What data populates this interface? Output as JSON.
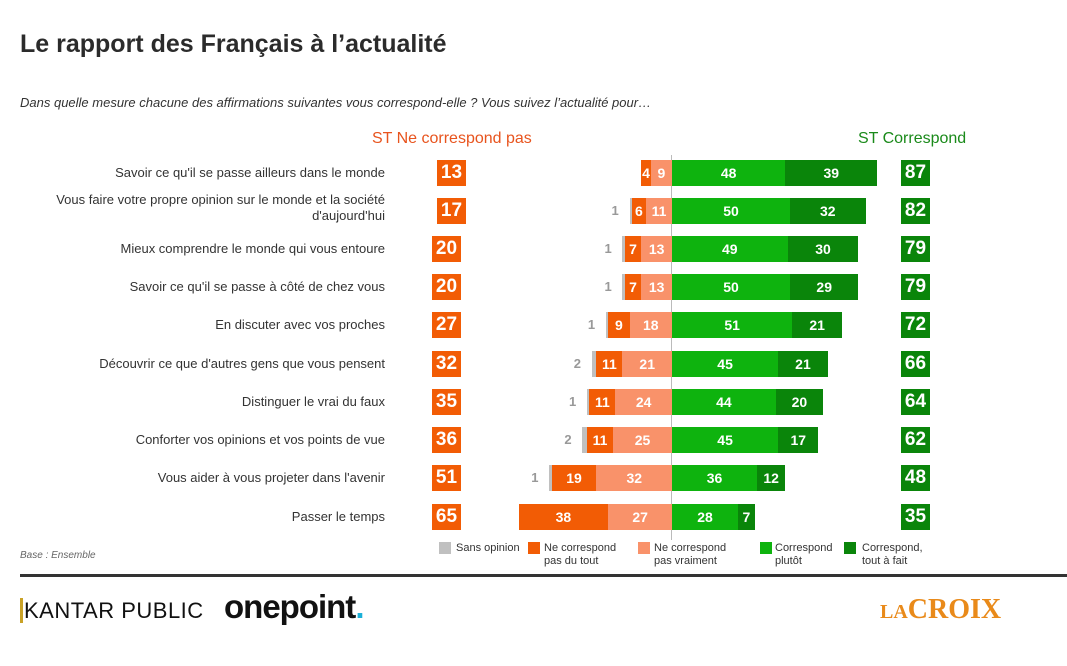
{
  "title": "Le rapport des Français à l’actualité",
  "subtitle": "Dans quelle mesure chacune des affirmations suivantes vous correspond-elle ? Vous suivez l’actualité pour…",
  "headers": {
    "left": "ST Ne correspond pas",
    "right": "ST Correspond"
  },
  "base": "Base : Ensemble",
  "logos": {
    "kantar": "KANTAR PUBLIC",
    "onepoint": "onepoint",
    "lacroix_la": "LA",
    "lacroix_croix": "CROIX"
  },
  "colors": {
    "sans_opinion": "#c0c0c0",
    "ne_correspond_pas_du_tout": "#f25c05",
    "ne_correspond_pas_vraiment": "#f9926a",
    "correspond_plutot": "#0eb30e",
    "correspond_tout_a_fait": "#0a850a"
  },
  "chart_data": {
    "type": "bar",
    "subtype": "diverging-stacked-horizontal",
    "title": "Le rapport des Français à l’actualité",
    "categories": [
      "Savoir ce qu'il se passe ailleurs dans le monde",
      "Vous faire votre propre opinion sur le monde et la société d'aujourd'hui",
      "Mieux comprendre le monde qui vous entoure",
      "Savoir ce qu'il se passe à côté de chez vous",
      "En discuter avec vos proches",
      "Découvrir ce que d'autres gens que vous pensent",
      "Distinguer le vrai du faux",
      "Conforter vos opinions et vos points de vue",
      "Vous aider à vous projeter dans l'avenir",
      "Passer le temps"
    ],
    "series": [
      {
        "name": "Sans opinion",
        "values": [
          0,
          1,
          1,
          1,
          1,
          2,
          1,
          2,
          1,
          0
        ]
      },
      {
        "name": "Ne correspond pas du tout",
        "values": [
          4,
          6,
          7,
          7,
          9,
          11,
          11,
          11,
          19,
          38
        ]
      },
      {
        "name": "Ne correspond pas vraiment",
        "values": [
          9,
          11,
          13,
          13,
          18,
          21,
          24,
          25,
          32,
          27
        ]
      },
      {
        "name": "Correspond plutôt",
        "values": [
          48,
          50,
          49,
          50,
          51,
          45,
          44,
          45,
          36,
          28
        ]
      },
      {
        "name": "Correspond, tout à fait",
        "values": [
          39,
          32,
          30,
          29,
          21,
          21,
          20,
          17,
          12,
          7
        ]
      }
    ],
    "subtotals": {
      "ST Ne correspond pas": [
        13,
        17,
        20,
        20,
        27,
        32,
        35,
        36,
        51,
        65
      ],
      "ST Correspond": [
        87,
        82,
        79,
        79,
        72,
        66,
        64,
        62,
        48,
        35
      ]
    },
    "legend": [
      "Sans opinion",
      "Ne correspond pas du tout",
      "Ne correspond pas vraiment",
      "Correspond plutôt",
      "Correspond, tout à fait"
    ],
    "legend_position": "bottom",
    "xlabel": "",
    "ylabel": "",
    "unit": "%"
  }
}
